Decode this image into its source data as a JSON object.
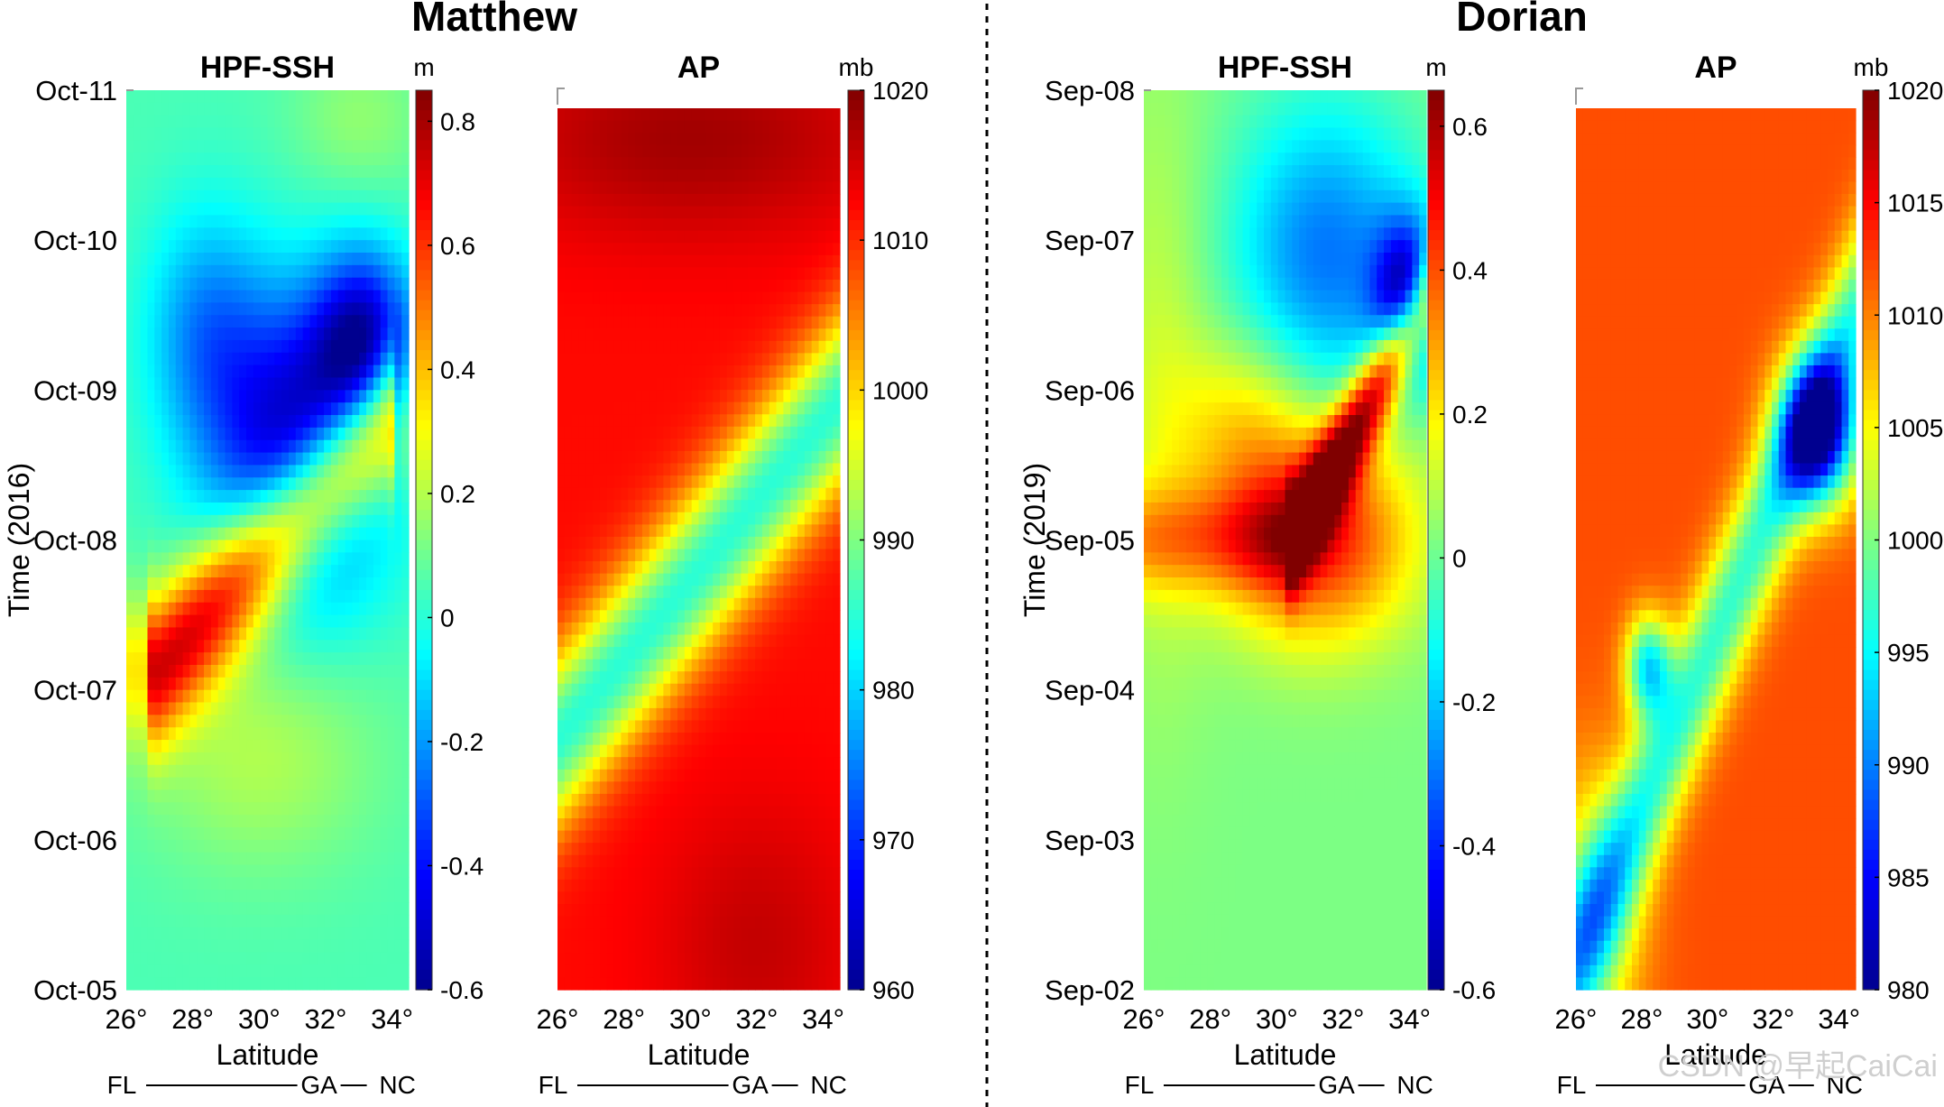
{
  "colors": {
    "colormap": [
      "#00008f",
      "#0000ff",
      "#0080ff",
      "#00ffff",
      "#80ff80",
      "#ffff00",
      "#ff8000",
      "#ff0000",
      "#800000"
    ],
    "divider": "#000000"
  },
  "watermark": "CSDN @早起CaiCai",
  "chart_data": [
    {
      "type": "heatmap",
      "storm": "Matthew",
      "title": "HPF-SSH",
      "xlabel": "Latitude",
      "ylabel": "Time (2016)",
      "x_ticks": [
        "26°",
        "28°",
        "30°",
        "32°",
        "34°"
      ],
      "x_values": [
        26,
        28,
        30,
        32,
        34
      ],
      "xlim": [
        26,
        34.5
      ],
      "y_ticks": [
        "Oct-05",
        "Oct-06",
        "Oct-07",
        "Oct-08",
        "Oct-09",
        "Oct-10",
        "Oct-11"
      ],
      "ylim": [
        0,
        6
      ],
      "colorbar": {
        "unit": "m",
        "ticks": [
          "0.8",
          "0.6",
          "0.4",
          "0.2",
          "0",
          "-0.2",
          "-0.4",
          "-0.6"
        ],
        "values": [
          0.8,
          0.6,
          0.4,
          0.2,
          0,
          -0.2,
          -0.4,
          -0.6
        ],
        "range": [
          -0.6,
          0.85
        ]
      },
      "region_labels": [
        "FL",
        "GA",
        "NC"
      ],
      "field": {
        "background": 0.05,
        "features": [
          {
            "kind": "band",
            "from": [
              27,
              2.15
            ],
            "to": [
              33.8,
              3.8
            ],
            "value": 0.7,
            "width": 0.5
          },
          {
            "kind": "blob",
            "center": [
              31.2,
              3.6
            ],
            "radius": [
              2.6,
              1.0
            ],
            "value": -0.55
          },
          {
            "kind": "blob",
            "center": [
              33.2,
              4.3
            ],
            "radius": [
              1.5,
              0.6
            ],
            "value": -0.5
          },
          {
            "kind": "blob",
            "center": [
              28.4,
              4.4
            ],
            "radius": [
              1.8,
              0.8
            ],
            "value": -0.2
          },
          {
            "kind": "blob",
            "center": [
              30,
              1.6
            ],
            "radius": [
              3.5,
              0.8
            ],
            "value": 0.2
          },
          {
            "kind": "blob",
            "center": [
              33,
              5.8
            ],
            "radius": [
              2.0,
              0.5
            ],
            "value": 0.15
          }
        ]
      }
    },
    {
      "type": "heatmap",
      "storm": "Matthew",
      "title": "AP",
      "xlabel": "Latitude",
      "x_ticks": [
        "26°",
        "28°",
        "30°",
        "32°",
        "34°"
      ],
      "x_values": [
        26,
        28,
        30,
        32,
        34
      ],
      "xlim": [
        26,
        34.5
      ],
      "ylim": [
        0,
        6
      ],
      "colorbar": {
        "unit": "mb",
        "ticks": [
          "1020",
          "1010",
          "1000",
          "990",
          "980",
          "970",
          "960"
        ],
        "values": [
          1020,
          1010,
          1000,
          990,
          980,
          970,
          960
        ],
        "range": [
          960,
          1020
        ]
      },
      "region_labels": [
        "FL",
        "GA",
        "NC"
      ],
      "field": {
        "background": 1012,
        "features": [
          {
            "kind": "band",
            "from": [
              26,
              1.7
            ],
            "to": [
              34.5,
              4.0
            ],
            "value": 985,
            "width": 0.6
          },
          {
            "kind": "blob",
            "center": [
              30,
              5.8
            ],
            "radius": [
              6.0,
              0.7
            ],
            "value": 1018
          },
          {
            "kind": "blob",
            "center": [
              32,
              0.3
            ],
            "radius": [
              3.0,
              1.0
            ],
            "value": 1016
          }
        ]
      }
    },
    {
      "type": "heatmap",
      "storm": "Dorian",
      "title": "HPF-SSH",
      "xlabel": "Latitude",
      "ylabel": "Time (2019)",
      "x_ticks": [
        "26°",
        "28°",
        "30°",
        "32°",
        "34°"
      ],
      "x_values": [
        26,
        28,
        30,
        32,
        34
      ],
      "xlim": [
        26,
        34.5
      ],
      "y_ticks": [
        "Sep-02",
        "Sep-03",
        "Sep-04",
        "Sep-05",
        "Sep-06",
        "Sep-07",
        "Sep-08"
      ],
      "ylim": [
        0,
        6
      ],
      "colorbar": {
        "unit": "m",
        "ticks": [
          "0.6",
          "0.4",
          "0.2",
          "0",
          "-0.2",
          "-0.4",
          "-0.6"
        ],
        "values": [
          0.6,
          0.4,
          0.2,
          0,
          -0.2,
          -0.4,
          -0.6
        ],
        "range": [
          -0.6,
          0.65
        ]
      },
      "region_labels": [
        "FL",
        "GA",
        "NC"
      ],
      "field": {
        "background": 0.02,
        "features": [
          {
            "kind": "blob",
            "center": [
              31.2,
              3.05
            ],
            "radius": [
              2.8,
              0.7
            ],
            "value": 0.5
          },
          {
            "kind": "band",
            "from": [
              30.5,
              3.0
            ],
            "to": [
              34.5,
              4.6
            ],
            "value": 0.6,
            "width": 0.35
          },
          {
            "kind": "blob",
            "center": [
              31.5,
              4.9
            ],
            "radius": [
              2.8,
              1.0
            ],
            "value": -0.3
          },
          {
            "kind": "blob",
            "center": [
              34,
              4.6
            ],
            "radius": [
              1.0,
              0.5
            ],
            "value": -0.55
          },
          {
            "kind": "blob",
            "center": [
              29,
              3.8
            ],
            "radius": [
              2.0,
              0.6
            ],
            "value": 0.2
          },
          {
            "kind": "blob",
            "center": [
              26.5,
              4.0
            ],
            "radius": [
              1.5,
              2.0
            ],
            "value": 0.12
          }
        ]
      }
    },
    {
      "type": "heatmap",
      "storm": "Dorian",
      "title": "AP",
      "xlabel": "Latitude",
      "x_ticks": [
        "26°",
        "28°",
        "30°",
        "32°",
        "34°"
      ],
      "x_values": [
        26,
        28,
        30,
        32,
        34
      ],
      "xlim": [
        26,
        34.5
      ],
      "ylim": [
        0,
        6
      ],
      "colorbar": {
        "unit": "mb",
        "ticks": [
          "1020",
          "1015",
          "1010",
          "1005",
          "1000",
          "995",
          "990",
          "985",
          "980"
        ],
        "values": [
          1020,
          1015,
          1010,
          1005,
          1000,
          995,
          990,
          985,
          980
        ],
        "range": [
          980,
          1020
        ]
      },
      "region_labels": [
        "FL",
        "GA",
        "NC"
      ],
      "field": {
        "background": 1012,
        "features": [
          {
            "kind": "band",
            "from": [
              26,
              0.2
            ],
            "to": [
              34.5,
              4.6
            ],
            "value": 997,
            "width": 0.6
          },
          {
            "kind": "blob",
            "center": [
              33.4,
              3.8
            ],
            "radius": [
              1.2,
              0.5
            ],
            "value": 985
          },
          {
            "kind": "blob",
            "center": [
              28.2,
              2.2
            ],
            "radius": [
              0.7,
              0.35
            ],
            "value": 995
          },
          {
            "kind": "blob",
            "center": [
              26.5,
              0.5
            ],
            "radius": [
              1.5,
              1.0
            ],
            "value": 1003
          }
        ]
      }
    }
  ]
}
